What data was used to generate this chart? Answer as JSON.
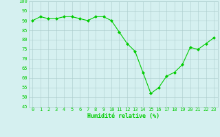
{
  "x": [
    0,
    1,
    2,
    3,
    4,
    5,
    6,
    7,
    8,
    9,
    10,
    11,
    12,
    13,
    14,
    15,
    16,
    17,
    18,
    19,
    20,
    21,
    22,
    23
  ],
  "y": [
    90,
    92,
    91,
    91,
    92,
    92,
    91,
    90,
    92,
    92,
    90,
    84,
    78,
    74,
    63,
    52,
    55,
    61,
    63,
    67,
    76,
    75,
    78,
    81
  ],
  "line_color": "#00cc00",
  "marker_color": "#00cc00",
  "bg_color": "#d5f0f0",
  "grid_color": "#aacccc",
  "xlabel": "Humidité relative (%)",
  "xlabel_color": "#00cc00",
  "ylim": [
    45,
    100
  ],
  "yticks": [
    45,
    50,
    55,
    60,
    65,
    70,
    75,
    80,
    85,
    90,
    95,
    100
  ],
  "xticks": [
    0,
    1,
    2,
    3,
    4,
    5,
    6,
    7,
    8,
    9,
    10,
    11,
    12,
    13,
    14,
    15,
    16,
    17,
    18,
    19,
    20,
    21,
    22,
    23
  ],
  "tick_color": "#00cc00",
  "tick_fontsize": 5.0,
  "xlabel_fontsize": 6.0,
  "marker_size": 2.0,
  "line_width": 0.8
}
